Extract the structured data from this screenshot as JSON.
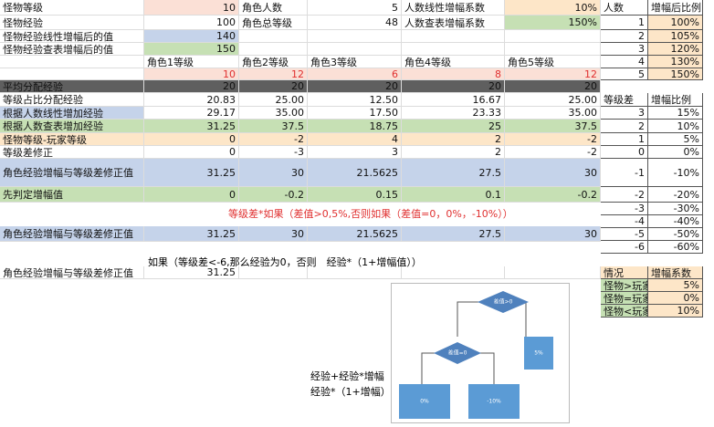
{
  "sheet": {
    "rows": [
      [
        "怪物等级",
        "10",
        "角色人数",
        "5",
        "人数线性增幅系数",
        "10%"
      ],
      [
        "怪物经验",
        "100",
        "角色总等级",
        "48",
        "人数查表增幅系数",
        "150%"
      ],
      [
        "怪物经验线性增幅后的值",
        "140",
        null,
        null,
        null,
        null
      ],
      [
        "怪物经验查表增幅后的值",
        "150",
        null,
        null,
        null,
        null
      ],
      [
        null,
        "角色1等级",
        "角色2等级",
        "角色3等级",
        "角色4等级",
        "角色5等级"
      ],
      [
        null,
        "10",
        "12",
        "6",
        "8",
        "12"
      ],
      [
        "平均分配经验",
        "20",
        "20",
        "20",
        "20",
        "20"
      ],
      [
        "等级占比分配经验",
        "20.83",
        "25.00",
        "12.50",
        "16.67",
        "25.00"
      ],
      [
        "根据人数线性增加经验",
        "29.17",
        "35.00",
        "17.50",
        "23.33",
        "35.00"
      ],
      [
        "根据人数查表增加经验",
        "31.25",
        "37.5",
        "18.75",
        "25",
        "37.5"
      ],
      [
        "怪物等级-玩家等级",
        "0",
        "-2",
        "4",
        "2",
        "-2"
      ],
      [
        "等级差修正",
        "0",
        "-3",
        "3",
        "2",
        "-2"
      ],
      [
        "角色经验增幅与等级差修正值",
        "31.25",
        "30",
        "21.5625",
        "27.5",
        "30"
      ],
      [
        "先判定增幅值",
        "0",
        "-0.2",
        "0.15",
        "0.1",
        "-0.2"
      ],
      [
        "角色经验增幅与等级差修正值",
        "31.25",
        "30",
        "21.5625",
        "27.5",
        "30"
      ],
      [
        "角色经验增幅与等级差修正值",
        "31.25",
        null,
        null,
        null,
        null
      ]
    ]
  },
  "ratio_table": {
    "header": [
      "人数",
      "增幅后比例"
    ],
    "rows": [
      [
        "1",
        "100%"
      ],
      [
        "2",
        "105%"
      ],
      [
        "3",
        "120%"
      ],
      [
        "4",
        "130%"
      ],
      [
        "5",
        "150%"
      ]
    ]
  },
  "diff_table": {
    "header": [
      "等级差",
      "增幅比例"
    ],
    "rows": [
      [
        "3",
        "15%"
      ],
      [
        "2",
        "10%"
      ],
      [
        "1",
        "5%"
      ],
      [
        "0",
        "0%"
      ],
      [
        "-1",
        "-10%"
      ],
      [
        "-2",
        "-20%"
      ],
      [
        "-3",
        "-30%"
      ],
      [
        "-4",
        "-40%"
      ],
      [
        "-5",
        "-50%"
      ],
      [
        "-6",
        "-60%"
      ]
    ]
  },
  "case_table": {
    "header": [
      "情况",
      "增幅系数"
    ],
    "rows": [
      [
        "怪物>玩家",
        "5%"
      ],
      [
        "怪物=玩家",
        "0%"
      ],
      [
        "怪物<玩家",
        "10%"
      ]
    ]
  },
  "formula_note": "等级差*如果（差值>0,5%,否则如果（差值=0，0%，-10%））",
  "if_note": "如果（等级差<-6,那么经验为0，否则　经验*（1+增幅值））",
  "side_notes": [
    "经验+经验*增幅",
    "经验*（1+增幅）"
  ],
  "flowchart": {
    "nodes": [
      "差值>0",
      "差值=0",
      "5%",
      "0%",
      "-10%"
    ]
  }
}
